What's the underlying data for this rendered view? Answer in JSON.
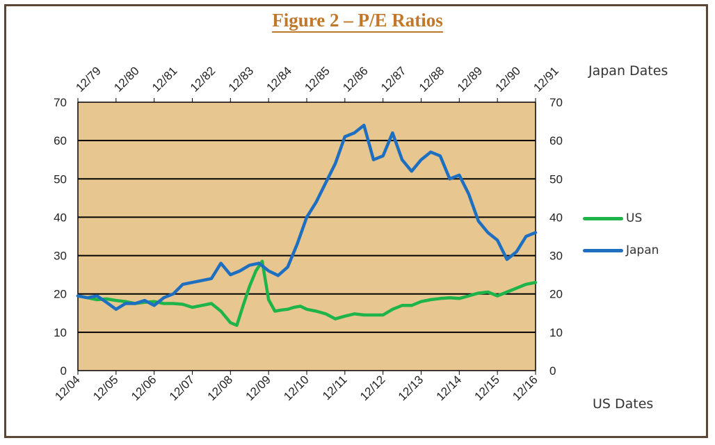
{
  "title": "Figure 2 – P/E Ratios",
  "labels": {
    "japan_dates": "Japan Dates",
    "us_dates": "US Dates"
  },
  "colors": {
    "plot_bg": "#e8c690",
    "us": "#1fb44a",
    "japan": "#1f6fc1",
    "border": "#5b4636",
    "title": "#c0792b"
  },
  "chart_data": {
    "type": "line",
    "title": "Figure 2 – P/E Ratios",
    "ylim": [
      0,
      70
    ],
    "yticks": [
      0,
      10,
      20,
      30,
      40,
      50,
      60,
      70
    ],
    "grid": true,
    "legend_position": "right",
    "x_bottom": {
      "label": "US Dates",
      "range": [
        "12/04",
        "12/16"
      ],
      "ticks": [
        "12/04",
        "12/05",
        "12/06",
        "12/07",
        "12/08",
        "12/09",
        "12/10",
        "12/11",
        "12/12",
        "12/13",
        "12/14",
        "12/15",
        "12/16"
      ]
    },
    "x_top": {
      "label": "Japan Dates",
      "range": [
        "12/79",
        "12/91"
      ],
      "ticks": [
        "12/79",
        "12/80",
        "12/81",
        "12/82",
        "12/83",
        "12/84",
        "12/85",
        "12/86",
        "12/87",
        "12/88",
        "12/89",
        "12/90",
        "12/91"
      ]
    },
    "series": [
      {
        "name": "US",
        "x_axis": "bottom",
        "x": [
          "12/04",
          "3/05",
          "6/05",
          "9/05",
          "12/05",
          "3/06",
          "6/06",
          "9/06",
          "12/06",
          "3/07",
          "6/07",
          "9/07",
          "12/07",
          "3/08",
          "6/08",
          "9/08",
          "12/08",
          "2/09",
          "4/09",
          "6/09",
          "8/09",
          "10/09",
          "12/09",
          "2/10",
          "4/10",
          "6/10",
          "8/10",
          "10/10",
          "12/10",
          "3/11",
          "6/11",
          "9/11",
          "12/11",
          "3/12",
          "6/12",
          "9/12",
          "12/12",
          "3/13",
          "6/13",
          "9/13",
          "12/13",
          "3/14",
          "6/14",
          "9/14",
          "12/14",
          "3/15",
          "6/15",
          "9/15",
          "12/15",
          "3/16",
          "6/16",
          "9/16",
          "12/16"
        ],
        "values": [
          19.5,
          19,
          18.5,
          18.7,
          18.3,
          18,
          17.5,
          17.8,
          18,
          17.5,
          17.5,
          17.3,
          16.5,
          17,
          17.5,
          15.5,
          12.5,
          11.8,
          17,
          22,
          26,
          28.5,
          18.5,
          15.5,
          15.8,
          16,
          16.5,
          16.8,
          16,
          15.5,
          14.8,
          13.5,
          14.2,
          14.8,
          14.5,
          14.5,
          14.5,
          16,
          17,
          17,
          18,
          18.5,
          18.8,
          19,
          18.8,
          19.5,
          20.2,
          20.5,
          19.5,
          20.5,
          21.5,
          22.5,
          23
        ]
      },
      {
        "name": "Japan",
        "x_axis": "top",
        "x": [
          "12/79",
          "3/80",
          "6/80",
          "9/80",
          "12/80",
          "3/81",
          "6/81",
          "9/81",
          "12/81",
          "3/82",
          "6/82",
          "9/82",
          "12/82",
          "3/83",
          "6/83",
          "9/83",
          "12/83",
          "3/84",
          "6/84",
          "9/84",
          "12/84",
          "3/85",
          "6/85",
          "9/85",
          "12/85",
          "3/86",
          "6/86",
          "9/86",
          "12/86",
          "3/87",
          "6/87",
          "9/87",
          "12/87",
          "3/88",
          "6/88",
          "9/88",
          "12/88",
          "3/89",
          "6/89",
          "9/89",
          "12/89",
          "3/90",
          "6/90",
          "9/90",
          "12/90",
          "3/91",
          "6/91",
          "9/91",
          "12/91"
        ],
        "values": [
          19.5,
          19,
          19.5,
          17.8,
          16,
          17.5,
          17.5,
          18.3,
          17,
          19,
          20,
          22.5,
          23,
          23.5,
          24,
          28,
          25,
          26,
          27.5,
          28,
          26,
          24.8,
          27,
          33,
          40,
          44,
          49,
          54,
          61,
          62,
          64,
          55,
          56,
          62,
          55,
          52,
          55,
          57,
          56,
          50,
          51,
          46,
          39,
          36,
          34,
          29,
          31,
          35,
          36
        ]
      }
    ]
  }
}
